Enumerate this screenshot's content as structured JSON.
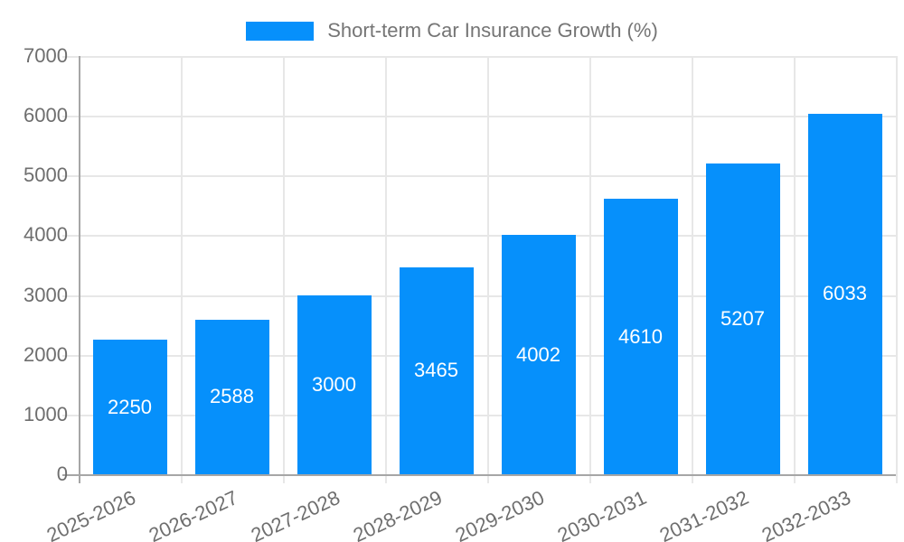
{
  "chart_data": {
    "type": "bar",
    "title": "",
    "series_name": "Short-term Car Insurance Growth (%)",
    "categories": [
      "2025-2026",
      "2026-2027",
      "2027-2028",
      "2028-2029",
      "2029-2030",
      "2030-2031",
      "2031-2032",
      "2032-2033"
    ],
    "values": [
      2250,
      2588,
      3000,
      3465,
      4002,
      4610,
      5207,
      6033
    ],
    "value_labels": [
      "2250",
      "2588",
      "3000",
      "3465",
      "4002",
      "4610",
      "5207",
      "6033"
    ],
    "ylim": [
      0,
      7000
    ],
    "ytick_step": 1000,
    "yticks": [
      "0",
      "1000",
      "2000",
      "3000",
      "4000",
      "5000",
      "6000",
      "7000"
    ],
    "legend_position": "top",
    "grid": true,
    "bar_color": "#0690fb",
    "bar_label_color": "#ffffff",
    "grid_color": "#e7e7e7",
    "axis_color": "#a6a6a6",
    "tick_text_color": "#6e6e6e",
    "legend_text_color": "#757575",
    "x_label_rotation_deg": -25
  }
}
